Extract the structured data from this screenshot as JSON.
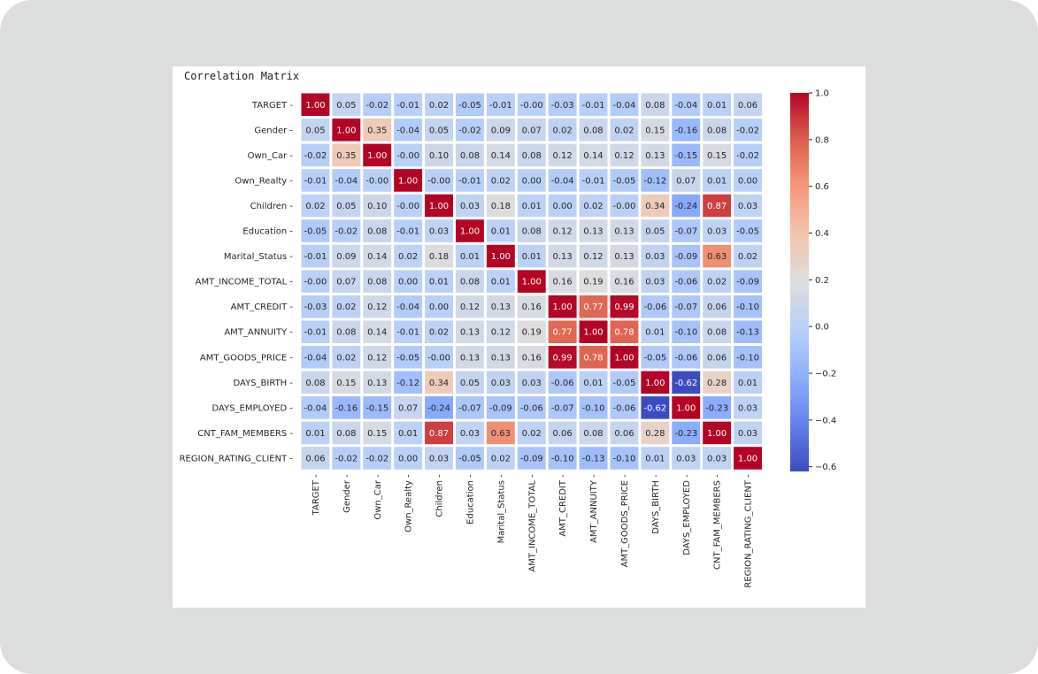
{
  "chart_data": {
    "type": "heatmap",
    "title": "Correlation Matrix",
    "variables": [
      "TARGET",
      "Gender",
      "Own_Car",
      "Own_Realty",
      "Children",
      "Education",
      "Marital_Status",
      "AMT_INCOME_TOTAL",
      "AMT_CREDIT",
      "AMT_ANNUITY",
      "AMT_GOODS_PRICE",
      "DAYS_BIRTH",
      "DAYS_EMPLOYED",
      "CNT_FAM_MEMBERS",
      "REGION_RATING_CLIENT"
    ],
    "matrix": [
      [
        1.0,
        0.05,
        -0.02,
        -0.01,
        0.02,
        -0.05,
        -0.01,
        -0.0,
        -0.03,
        -0.01,
        -0.04,
        0.08,
        -0.04,
        0.01,
        0.06
      ],
      [
        0.05,
        1.0,
        0.35,
        -0.04,
        0.05,
        -0.02,
        0.09,
        0.07,
        0.02,
        0.08,
        0.02,
        0.15,
        -0.16,
        0.08,
        -0.02
      ],
      [
        -0.02,
        0.35,
        1.0,
        -0.0,
        0.1,
        0.08,
        0.14,
        0.08,
        0.12,
        0.14,
        0.12,
        0.13,
        -0.15,
        0.15,
        -0.02
      ],
      [
        -0.01,
        -0.04,
        -0.0,
        1.0,
        -0.0,
        -0.01,
        0.02,
        0.0,
        -0.04,
        -0.01,
        -0.05,
        -0.12,
        0.07,
        0.01,
        0.0
      ],
      [
        0.02,
        0.05,
        0.1,
        -0.0,
        1.0,
        0.03,
        0.18,
        0.01,
        0.0,
        0.02,
        -0.0,
        0.34,
        -0.24,
        0.87,
        0.03
      ],
      [
        -0.05,
        -0.02,
        0.08,
        -0.01,
        0.03,
        1.0,
        0.01,
        0.08,
        0.12,
        0.13,
        0.13,
        0.05,
        -0.07,
        0.03,
        -0.05
      ],
      [
        -0.01,
        0.09,
        0.14,
        0.02,
        0.18,
        0.01,
        1.0,
        0.01,
        0.13,
        0.12,
        0.13,
        0.03,
        -0.09,
        0.63,
        0.02
      ],
      [
        -0.0,
        0.07,
        0.08,
        0.0,
        0.01,
        0.08,
        0.01,
        1.0,
        0.16,
        0.19,
        0.16,
        0.03,
        -0.06,
        0.02,
        -0.09
      ],
      [
        -0.03,
        0.02,
        0.12,
        -0.04,
        0.0,
        0.12,
        0.13,
        0.16,
        1.0,
        0.77,
        0.99,
        -0.06,
        -0.07,
        0.06,
        -0.1
      ],
      [
        -0.01,
        0.08,
        0.14,
        -0.01,
        0.02,
        0.13,
        0.12,
        0.19,
        0.77,
        1.0,
        0.78,
        0.01,
        -0.1,
        0.08,
        -0.13
      ],
      [
        -0.04,
        0.02,
        0.12,
        -0.05,
        -0.0,
        0.13,
        0.13,
        0.16,
        0.99,
        0.78,
        1.0,
        -0.05,
        -0.06,
        0.06,
        -0.1
      ],
      [
        0.08,
        0.15,
        0.13,
        -0.12,
        0.34,
        0.05,
        0.03,
        0.03,
        -0.06,
        0.01,
        -0.05,
        1.0,
        -0.62,
        0.28,
        0.01
      ],
      [
        -0.04,
        -0.16,
        -0.15,
        0.07,
        -0.24,
        -0.07,
        -0.09,
        -0.06,
        -0.07,
        -0.1,
        -0.06,
        -0.62,
        1.0,
        -0.23,
        0.03
      ],
      [
        0.01,
        0.08,
        0.15,
        0.01,
        0.87,
        0.03,
        0.63,
        0.02,
        0.06,
        0.08,
        0.06,
        0.28,
        -0.23,
        1.0,
        0.03
      ],
      [
        0.06,
        -0.02,
        -0.02,
        0.0,
        0.03,
        -0.05,
        0.02,
        -0.09,
        -0.1,
        -0.13,
        -0.1,
        0.01,
        0.03,
        0.03,
        1.0
      ]
    ],
    "value_format": "2 decimals",
    "colormap": "coolwarm",
    "vmin": -0.62,
    "vmax": 1.0,
    "colorbar_ticks": [
      "1.0",
      "0.8",
      "0.6",
      "0.4",
      "0.2",
      "0.0",
      "−0.2",
      "−0.4",
      "−0.6"
    ],
    "colorbar_tick_values": [
      1.0,
      0.8,
      0.6,
      0.4,
      0.2,
      0.0,
      -0.2,
      -0.4,
      -0.6
    ],
    "grid": false,
    "legend": "colorbar right"
  }
}
